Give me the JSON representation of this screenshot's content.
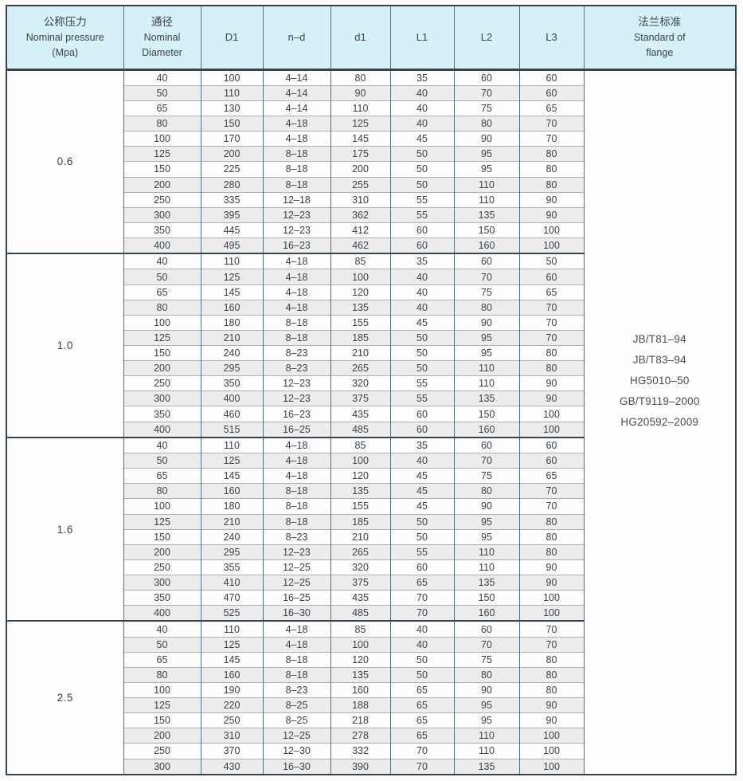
{
  "colors": {
    "page_bg": "#fcfcfc",
    "header_bg": "#d5f0f6",
    "alt_row_bg": "#ececec",
    "grid_dark": "#35444f",
    "grid_mid": "#57707e",
    "grid_light": "#aab0b4",
    "text": "#3d4347",
    "standard_text": "#494f54"
  },
  "table": {
    "header": {
      "pressure_zh": "公称压力",
      "pressure_en": "Nominal pressure",
      "pressure_unit": "(Mpa)",
      "diameter_zh": "通径",
      "diameter_en1": "Nominal",
      "diameter_en2": "Diameter",
      "cols": [
        "D1",
        "n–d",
        "d1",
        "L1",
        "L2",
        "L3"
      ],
      "standard_zh": "法兰标准",
      "standard_en1": "Standard of",
      "standard_en2": "flange"
    },
    "col_keys": [
      "dn",
      "D1",
      "nd",
      "d1",
      "L1",
      "L2",
      "L3"
    ],
    "standards": [
      "JB/T81–94",
      "JB/T83–94",
      "HG5010–50",
      "GB/T9119–2000",
      "HG20592–2009"
    ],
    "groups": [
      {
        "pressure": "0.6",
        "rows": [
          [
            "40",
            "100",
            "4–14",
            "80",
            "35",
            "60",
            "60"
          ],
          [
            "50",
            "110",
            "4–14",
            "90",
            "40",
            "70",
            "60"
          ],
          [
            "65",
            "130",
            "4–14",
            "110",
            "40",
            "75",
            "65"
          ],
          [
            "80",
            "150",
            "4–18",
            "125",
            "40",
            "80",
            "70"
          ],
          [
            "100",
            "170",
            "4–18",
            "145",
            "45",
            "90",
            "70"
          ],
          [
            "125",
            "200",
            "8–18",
            "175",
            "50",
            "95",
            "80"
          ],
          [
            "150",
            "225",
            "8–18",
            "200",
            "50",
            "95",
            "80"
          ],
          [
            "200",
            "280",
            "8–18",
            "255",
            "50",
            "110",
            "80"
          ],
          [
            "250",
            "335",
            "12–18",
            "310",
            "55",
            "110",
            "90"
          ],
          [
            "300",
            "395",
            "12–23",
            "362",
            "55",
            "135",
            "90"
          ],
          [
            "350",
            "445",
            "12–23",
            "412",
            "60",
            "150",
            "100"
          ],
          [
            "400",
            "495",
            "16–23",
            "462",
            "60",
            "160",
            "100"
          ]
        ]
      },
      {
        "pressure": "1.0",
        "rows": [
          [
            "40",
            "110",
            "4–18",
            "85",
            "35",
            "60",
            "50"
          ],
          [
            "50",
            "125",
            "4–18",
            "100",
            "40",
            "70",
            "60"
          ],
          [
            "65",
            "145",
            "4–18",
            "120",
            "40",
            "75",
            "65"
          ],
          [
            "80",
            "160",
            "4–18",
            "135",
            "40",
            "80",
            "70"
          ],
          [
            "100",
            "180",
            "8–18",
            "155",
            "45",
            "90",
            "70"
          ],
          [
            "125",
            "210",
            "8–18",
            "185",
            "50",
            "95",
            "70"
          ],
          [
            "150",
            "240",
            "8–23",
            "210",
            "50",
            "95",
            "80"
          ],
          [
            "200",
            "295",
            "8–23",
            "265",
            "50",
            "110",
            "80"
          ],
          [
            "250",
            "350",
            "12–23",
            "320",
            "55",
            "110",
            "90"
          ],
          [
            "300",
            "400",
            "12–23",
            "375",
            "55",
            "135",
            "90"
          ],
          [
            "350",
            "460",
            "16–23",
            "435",
            "60",
            "150",
            "100"
          ],
          [
            "400",
            "515",
            "16–25",
            "485",
            "60",
            "160",
            "100"
          ]
        ]
      },
      {
        "pressure": "1.6",
        "rows": [
          [
            "40",
            "110",
            "4–18",
            "85",
            "35",
            "60",
            "60"
          ],
          [
            "50",
            "125",
            "4–18",
            "100",
            "40",
            "70",
            "60"
          ],
          [
            "65",
            "145",
            "4–18",
            "120",
            "45",
            "75",
            "65"
          ],
          [
            "80",
            "160",
            "8–18",
            "135",
            "45",
            "80",
            "70"
          ],
          [
            "100",
            "180",
            "8–18",
            "155",
            "45",
            "90",
            "70"
          ],
          [
            "125",
            "210",
            "8–18",
            "185",
            "50",
            "95",
            "80"
          ],
          [
            "150",
            "240",
            "8–23",
            "210",
            "50",
            "95",
            "80"
          ],
          [
            "200",
            "295",
            "12–23",
            "265",
            "55",
            "110",
            "80"
          ],
          [
            "250",
            "355",
            "12–25",
            "320",
            "60",
            "110",
            "90"
          ],
          [
            "300",
            "410",
            "12–25",
            "375",
            "65",
            "135",
            "90"
          ],
          [
            "350",
            "470",
            "16–25",
            "435",
            "70",
            "150",
            "100"
          ],
          [
            "400",
            "525",
            "16–30",
            "485",
            "70",
            "160",
            "100"
          ]
        ]
      },
      {
        "pressure": "2.5",
        "rows": [
          [
            "40",
            "110",
            "4–18",
            "85",
            "40",
            "60",
            "70"
          ],
          [
            "50",
            "125",
            "4–18",
            "100",
            "40",
            "70",
            "70"
          ],
          [
            "65",
            "145",
            "8–18",
            "120",
            "50",
            "75",
            "80"
          ],
          [
            "80",
            "160",
            "8–18",
            "135",
            "50",
            "80",
            "80"
          ],
          [
            "100",
            "190",
            "8–23",
            "160",
            "65",
            "90",
            "80"
          ],
          [
            "125",
            "220",
            "8–25",
            "188",
            "65",
            "95",
            "90"
          ],
          [
            "150",
            "250",
            "8–25",
            "218",
            "65",
            "95",
            "90"
          ],
          [
            "200",
            "310",
            "12–25",
            "278",
            "65",
            "110",
            "100"
          ],
          [
            "250",
            "370",
            "12–30",
            "332",
            "70",
            "110",
            "100"
          ],
          [
            "300",
            "430",
            "16–30",
            "390",
            "70",
            "135",
            "100"
          ]
        ]
      }
    ]
  }
}
